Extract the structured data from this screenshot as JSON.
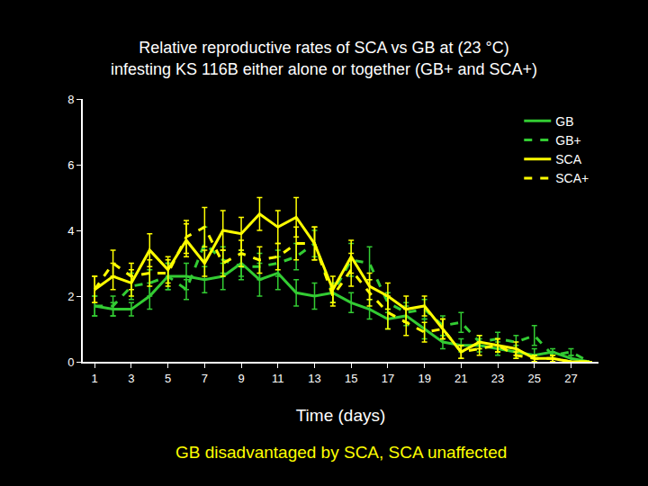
{
  "chart_data": {
    "type": "line",
    "title": "Relative reproductive rates of SCA vs GB at (23 °C)\ninfesting KS 116B either alone or together (GB+ and SCA+)",
    "x_label": "Time (days)",
    "annotation": "GB disadvantaged by SCA, SCA unaffected",
    "x": [
      1,
      2,
      3,
      4,
      5,
      6,
      7,
      8,
      9,
      10,
      11,
      12,
      13,
      14,
      15,
      16,
      17,
      18,
      19,
      20,
      21,
      22,
      23,
      24,
      25,
      26,
      27,
      28
    ],
    "series": [
      {
        "name": "GB",
        "color": "#33cc33",
        "line_style": "solid",
        "values": [
          1.7,
          1.6,
          1.6,
          2.0,
          2.6,
          2.6,
          2.5,
          2.6,
          3.0,
          2.5,
          2.7,
          2.1,
          2.0,
          2.1,
          1.8,
          1.6,
          1.3,
          1.4,
          1.0,
          0.6,
          0.5,
          0.5,
          0.4,
          0.3,
          0.2,
          0.3,
          0.1,
          0.0
        ],
        "errors": [
          0.3,
          0.2,
          0.2,
          0.4,
          0.4,
          0.4,
          0.4,
          0.4,
          0.4,
          0.5,
          0.5,
          0.4,
          0.4,
          0.3,
          0.3,
          0.3,
          0.3,
          0.3,
          0.3,
          0.2,
          0.2,
          0.2,
          0.2,
          0.2,
          0.2,
          0.1,
          0.1,
          0.0
        ]
      },
      {
        "name": "GB+",
        "color": "#33cc33",
        "line_style": "dash",
        "values": [
          1.7,
          1.7,
          2.3,
          2.4,
          2.6,
          2.2,
          3.6,
          3.1,
          2.9,
          2.9,
          3.0,
          3.2,
          3.6,
          2.1,
          3.1,
          3.0,
          1.8,
          1.5,
          1.6,
          1.1,
          1.2,
          0.6,
          0.7,
          0.6,
          0.8,
          0.2,
          0.3,
          0.0
        ],
        "errors": [
          0.3,
          0.3,
          0.4,
          0.4,
          0.4,
          0.3,
          0.5,
          0.4,
          0.4,
          0.4,
          0.4,
          0.4,
          0.4,
          0.3,
          0.5,
          0.5,
          0.3,
          0.3,
          0.3,
          0.3,
          0.3,
          0.2,
          0.2,
          0.2,
          0.3,
          0.1,
          0.1,
          0.0
        ]
      },
      {
        "name": "SCA",
        "color": "#ffff00",
        "line_style": "solid",
        "values": [
          2.2,
          2.6,
          2.4,
          3.4,
          2.8,
          3.7,
          3.0,
          4.0,
          3.9,
          4.5,
          4.1,
          4.4,
          3.6,
          2.2,
          3.2,
          2.3,
          2.0,
          1.6,
          1.7,
          1.0,
          0.3,
          0.6,
          0.5,
          0.4,
          0.1,
          0.1,
          0.0,
          0.0
        ],
        "errors": [
          0.4,
          0.4,
          0.4,
          0.5,
          0.4,
          0.5,
          0.4,
          0.6,
          0.5,
          0.5,
          0.5,
          0.6,
          0.5,
          0.4,
          0.5,
          0.4,
          0.4,
          0.4,
          0.3,
          0.3,
          0.2,
          0.2,
          0.2,
          0.2,
          0.1,
          0.1,
          0.0,
          0.0
        ]
      },
      {
        "name": "SCA+",
        "color": "#ffff00",
        "line_style": "dash",
        "values": [
          2.2,
          3.0,
          2.6,
          2.7,
          2.7,
          3.8,
          4.1,
          3.0,
          3.3,
          3.1,
          3.2,
          3.6,
          3.6,
          2.0,
          2.8,
          2.1,
          1.5,
          1.2,
          0.9,
          1.0,
          0.3,
          0.4,
          0.5,
          0.2,
          0.1,
          0.1,
          0.0,
          0.0
        ],
        "errors": [
          0.4,
          0.4,
          0.4,
          0.4,
          0.4,
          0.5,
          0.6,
          0.4,
          0.4,
          0.4,
          0.4,
          0.5,
          0.5,
          0.3,
          0.5,
          0.4,
          0.5,
          0.4,
          0.3,
          0.3,
          0.2,
          0.2,
          0.2,
          0.1,
          0.1,
          0.1,
          0.0,
          0.0
        ]
      }
    ],
    "xlim": [
      0.35,
      28.5
    ],
    "xticks": [
      1,
      3,
      5,
      7,
      9,
      11,
      13,
      15,
      17,
      19,
      21,
      23,
      25,
      27
    ],
    "ylim": [
      0,
      8
    ],
    "yticks": [
      0,
      2,
      4,
      6,
      8
    ],
    "grid": false,
    "legend": "upper right"
  }
}
